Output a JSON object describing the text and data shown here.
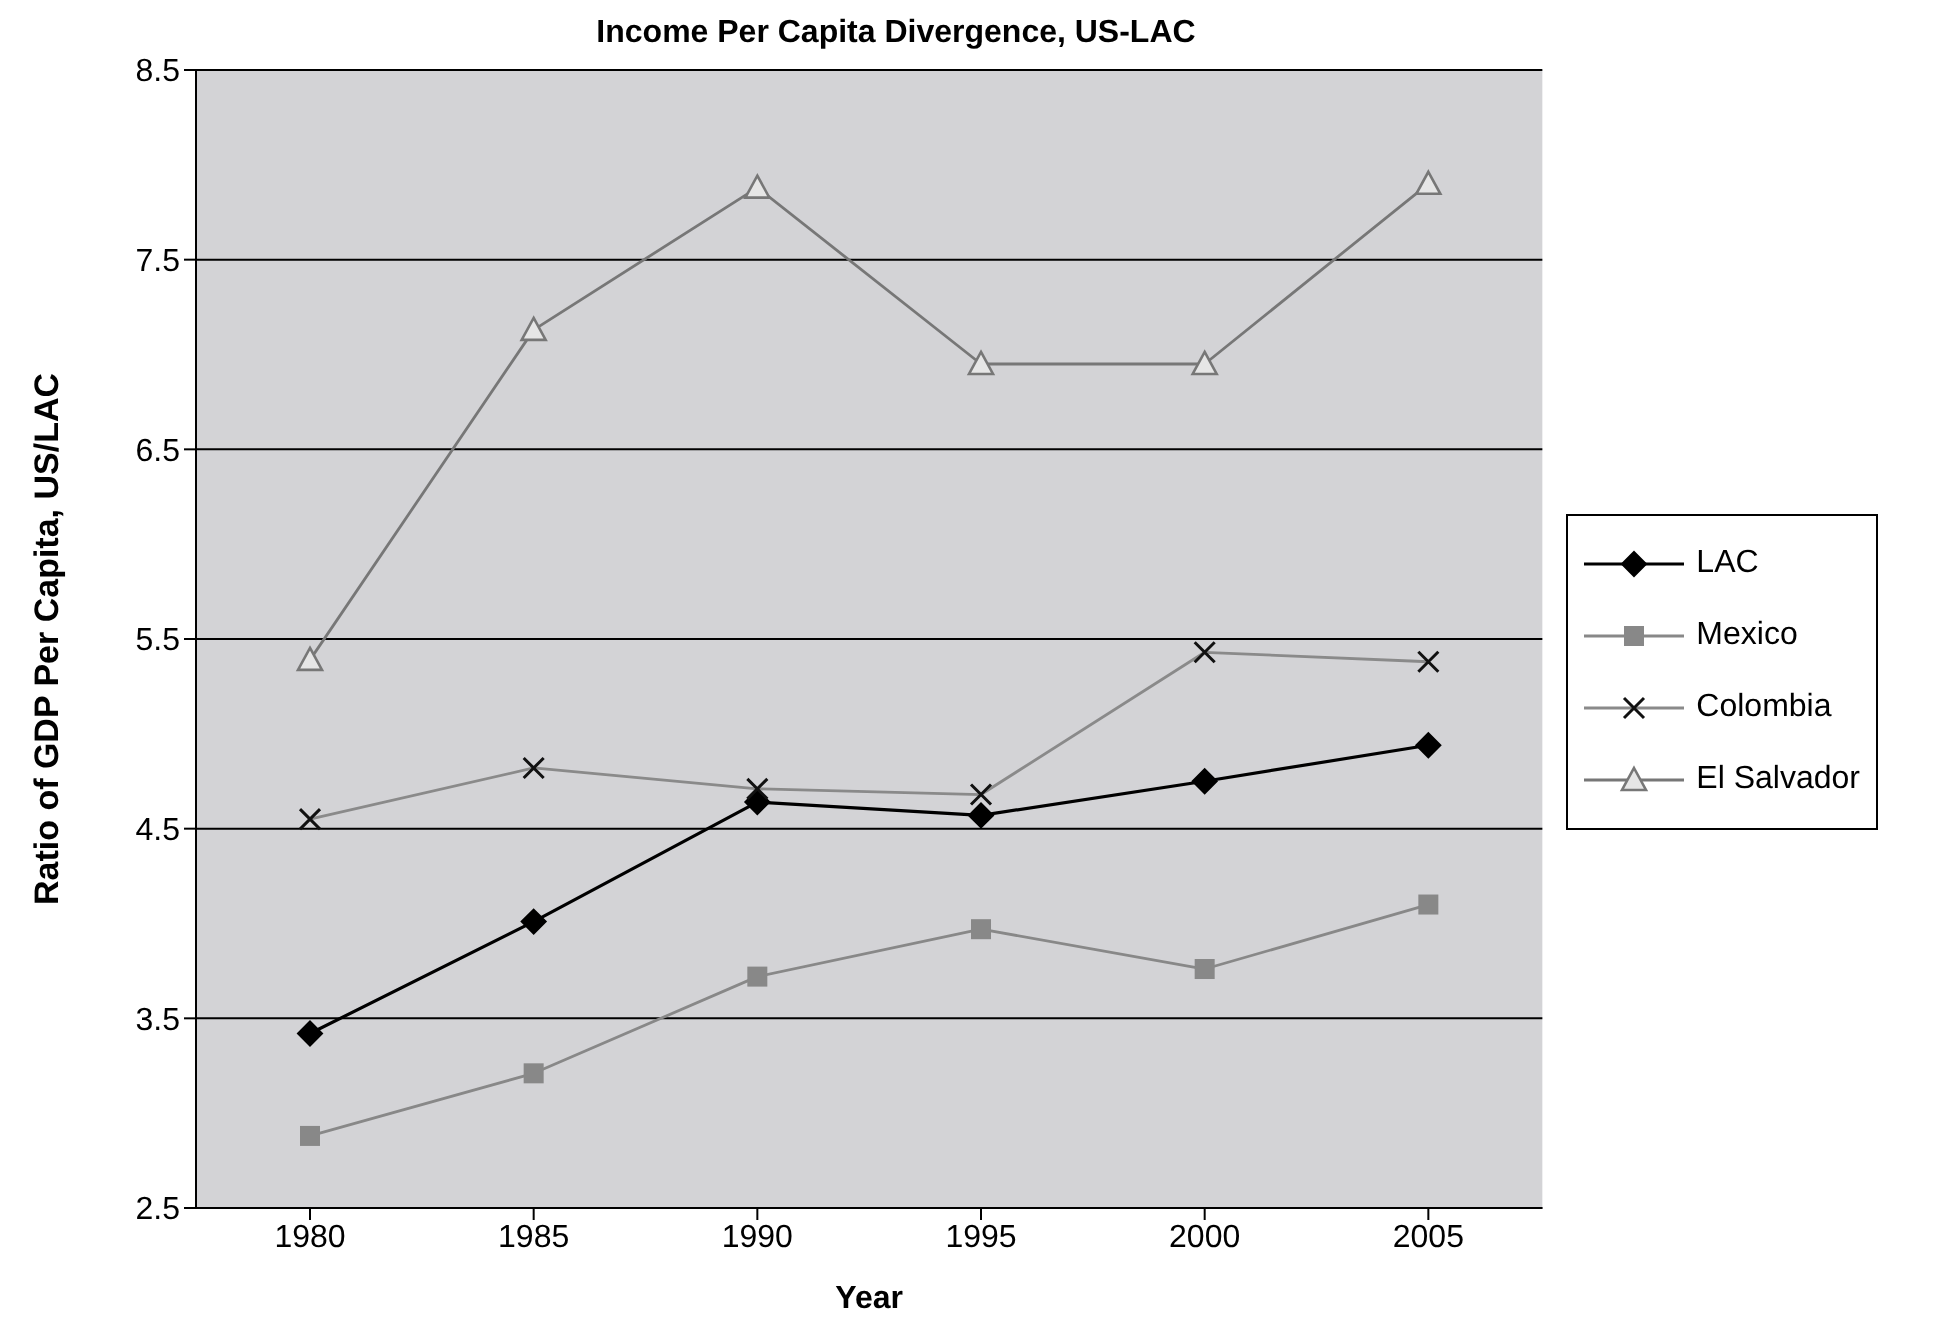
{
  "chart_data": {
    "type": "line",
    "title": "Income Per Capita Divergence, US-LAC",
    "xlabel": "Year",
    "ylabel": "Ratio of GDP Per Capita, US/LAC",
    "categories": [
      "1980",
      "1985",
      "1990",
      "1995",
      "2000",
      "2005"
    ],
    "series": [
      {
        "name": "LAC",
        "color": "#000000",
        "marker": "diamond",
        "values": [
          3.42,
          4.01,
          4.64,
          4.57,
          4.75,
          4.94
        ]
      },
      {
        "name": "Mexico",
        "color": "#888888",
        "marker": "square",
        "values": [
          2.88,
          3.21,
          3.72,
          3.97,
          3.76,
          4.1
        ]
      },
      {
        "name": "Colombia",
        "color": "#8a8a8a",
        "marker": "cross",
        "values": [
          4.55,
          4.82,
          4.71,
          4.68,
          5.43,
          5.38
        ]
      },
      {
        "name": "El Salvador",
        "color": "#777777",
        "marker": "triangle",
        "values": [
          5.39,
          7.13,
          7.88,
          6.95,
          6.95,
          7.9
        ]
      }
    ],
    "ylim": [
      2.5,
      8.5
    ],
    "yticks": [
      2.5,
      3.5,
      4.5,
      5.5,
      6.5,
      7.5,
      8.5
    ],
    "grid": "y",
    "legend": "right",
    "line_style": "solid"
  }
}
